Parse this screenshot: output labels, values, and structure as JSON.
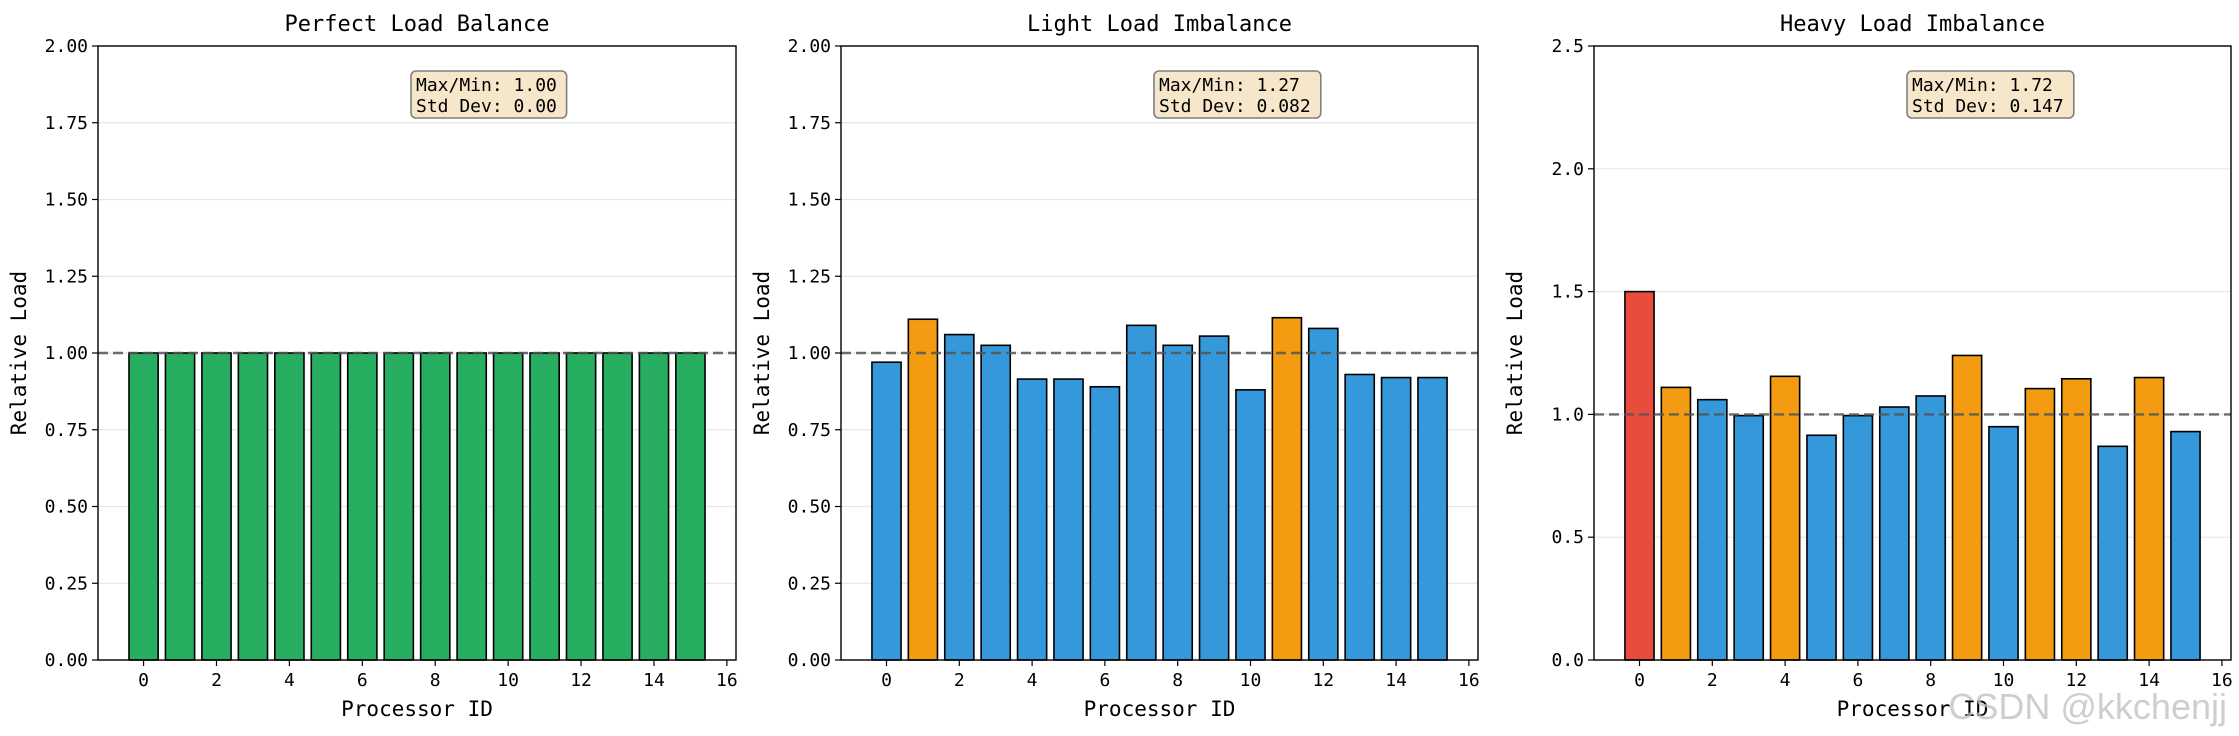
{
  "chart_data": [
    {
      "type": "bar",
      "title": "Perfect Load Balance",
      "xlabel": "Processor ID",
      "ylabel": "Relative Load",
      "x": [
        0,
        1,
        2,
        3,
        4,
        5,
        6,
        7,
        8,
        9,
        10,
        11,
        12,
        13,
        14,
        15
      ],
      "values": [
        1,
        1,
        1,
        1,
        1,
        1,
        1,
        1,
        1,
        1,
        1,
        1,
        1,
        1,
        1,
        1
      ],
      "bar_colors": [
        "#27ae60",
        "#27ae60",
        "#27ae60",
        "#27ae60",
        "#27ae60",
        "#27ae60",
        "#27ae60",
        "#27ae60",
        "#27ae60",
        "#27ae60",
        "#27ae60",
        "#27ae60",
        "#27ae60",
        "#27ae60",
        "#27ae60",
        "#27ae60"
      ],
      "xlim": [
        -1.25,
        16.25
      ],
      "xticks": [
        0,
        2,
        4,
        6,
        8,
        10,
        12,
        14,
        16
      ],
      "ylim": [
        0,
        2.0
      ],
      "yticks": [
        "0.00",
        "0.25",
        "0.50",
        "0.75",
        "1.00",
        "1.25",
        "1.50",
        "1.75",
        "2.00"
      ],
      "reference_line": 1.0,
      "grid": "y",
      "annotation": [
        "Max/Min: 1.00",
        "Std Dev: 0.00"
      ]
    },
    {
      "type": "bar",
      "title": "Light Load Imbalance",
      "xlabel": "Processor ID",
      "ylabel": "Relative Load",
      "x": [
        0,
        1,
        2,
        3,
        4,
        5,
        6,
        7,
        8,
        9,
        10,
        11,
        12,
        13,
        14,
        15
      ],
      "values": [
        0.97,
        1.11,
        1.06,
        1.025,
        0.915,
        0.915,
        0.89,
        1.09,
        1.025,
        1.055,
        0.88,
        1.115,
        1.08,
        0.93,
        0.92,
        0.92
      ],
      "bar_colors": [
        "#3498db",
        "#f39c12",
        "#3498db",
        "#3498db",
        "#3498db",
        "#3498db",
        "#3498db",
        "#3498db",
        "#3498db",
        "#3498db",
        "#3498db",
        "#f39c12",
        "#3498db",
        "#3498db",
        "#3498db",
        "#3498db"
      ],
      "xlim": [
        -1.25,
        16.25
      ],
      "xticks": [
        0,
        2,
        4,
        6,
        8,
        10,
        12,
        14,
        16
      ],
      "ylim": [
        0,
        2.0
      ],
      "yticks": [
        "0.00",
        "0.25",
        "0.50",
        "0.75",
        "1.00",
        "1.25",
        "1.50",
        "1.75",
        "2.00"
      ],
      "reference_line": 1.0,
      "grid": "y",
      "annotation": [
        "Max/Min: 1.27",
        "Std Dev: 0.082"
      ]
    },
    {
      "type": "bar",
      "title": "Heavy Load Imbalance",
      "xlabel": "Processor ID",
      "ylabel": "Relative Load",
      "x": [
        0,
        1,
        2,
        3,
        4,
        5,
        6,
        7,
        8,
        9,
        10,
        11,
        12,
        13,
        14,
        15
      ],
      "values": [
        1.5,
        1.11,
        1.06,
        0.995,
        1.155,
        0.915,
        0.995,
        1.03,
        1.075,
        1.24,
        0.95,
        1.105,
        1.145,
        0.87,
        1.15,
        0.93
      ],
      "bar_colors": [
        "#e74c3c",
        "#f39c12",
        "#3498db",
        "#3498db",
        "#f39c12",
        "#3498db",
        "#3498db",
        "#3498db",
        "#3498db",
        "#f39c12",
        "#3498db",
        "#f39c12",
        "#f39c12",
        "#3498db",
        "#f39c12",
        "#3498db"
      ],
      "xlim": [
        -1.25,
        16.25
      ],
      "xticks": [
        0,
        2,
        4,
        6,
        8,
        10,
        12,
        14,
        16
      ],
      "ylim": [
        0,
        2.5
      ],
      "yticks": [
        "0.0",
        "0.5",
        "1.0",
        "1.5",
        "2.0",
        "2.5"
      ],
      "reference_line": 1.0,
      "grid": "y",
      "annotation": [
        "Max/Min: 1.72",
        "Std Dev: 0.147"
      ]
    }
  ],
  "watermark": "CSDN @kkchenjj"
}
